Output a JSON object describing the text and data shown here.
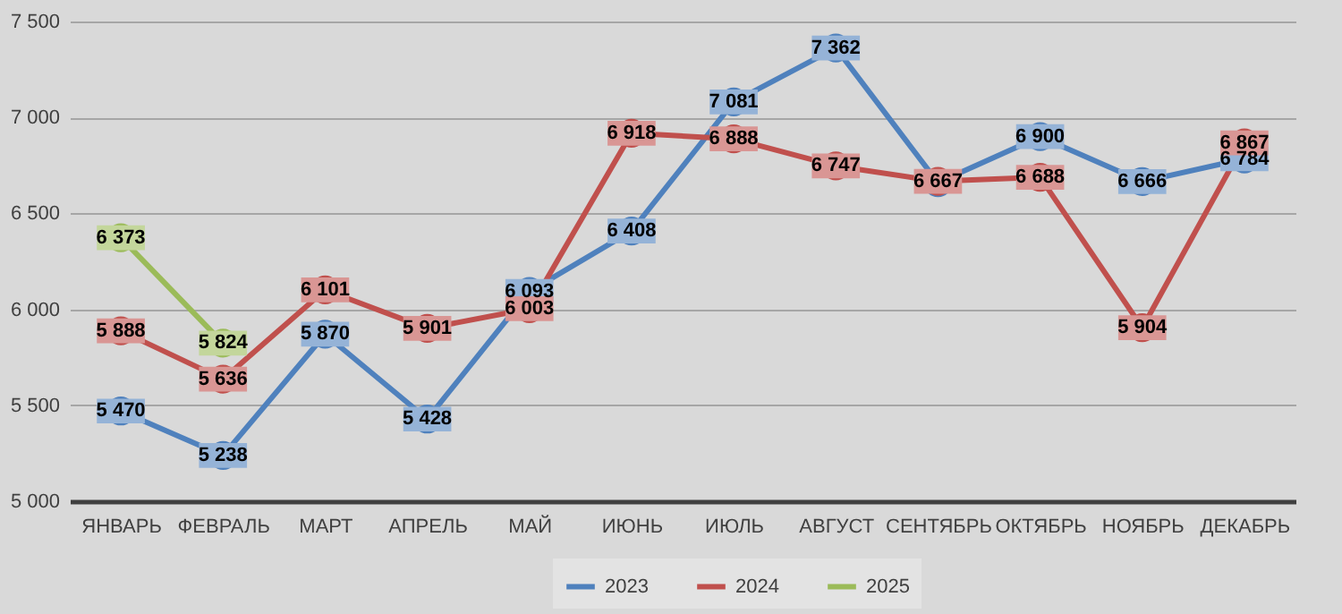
{
  "chart_data": {
    "type": "line",
    "categories": [
      "ЯНВАРЬ",
      "ФЕВРАЛЬ",
      "МАРТ",
      "АПРЕЛЬ",
      "МАЙ",
      "ИЮНЬ",
      "ИЮЛЬ",
      "АВГУСТ",
      "СЕНТЯБРЬ",
      "ОКТЯБРЬ",
      "НОЯБРЬ",
      "ДЕКАБРЬ"
    ],
    "series": [
      {
        "name": "2023",
        "color": "#4f81bd",
        "values": [
          5470,
          5238,
          5870,
          5428,
          6093,
          6408,
          7081,
          7362,
          6660,
          6900,
          6666,
          6784
        ],
        "value_labels": [
          "5 470",
          "5 238",
          "5 870",
          "5 428",
          "6 093",
          "6 408",
          "7 081",
          "7 362",
          null,
          "6 900",
          "6 666",
          "6 784"
        ]
      },
      {
        "name": "2024",
        "color": "#c0504d",
        "values": [
          5888,
          5636,
          6101,
          5901,
          6003,
          6918,
          6888,
          6747,
          6667,
          6688,
          5904,
          6867
        ],
        "value_labels": [
          "5 888",
          "5 636",
          "6 101",
          "5 901",
          "6 003",
          "6 918",
          "6 888",
          "6 747",
          "6 667",
          "6 688",
          "5 904",
          "6 867"
        ]
      },
      {
        "name": "2025",
        "color": "#9bbb59",
        "values": [
          6373,
          5824,
          null,
          null,
          null,
          null,
          null,
          null,
          null,
          null,
          null,
          null
        ],
        "value_labels": [
          "6 373",
          "5 824",
          null,
          null,
          null,
          null,
          null,
          null,
          null,
          null,
          null,
          null
        ]
      }
    ],
    "ylim": [
      5000,
      7500
    ],
    "yticks": [
      {
        "value": 5000,
        "label": "5 000"
      },
      {
        "value": 5500,
        "label": "5 500"
      },
      {
        "value": 6000,
        "label": "6 000"
      },
      {
        "value": 6500,
        "label": "6 500"
      },
      {
        "value": 7000,
        "label": "7 000"
      },
      {
        "value": 7500,
        "label": "7 500"
      }
    ],
    "grid": "y",
    "legend": "bottom",
    "marker": "circle",
    "line_style": "solid"
  }
}
